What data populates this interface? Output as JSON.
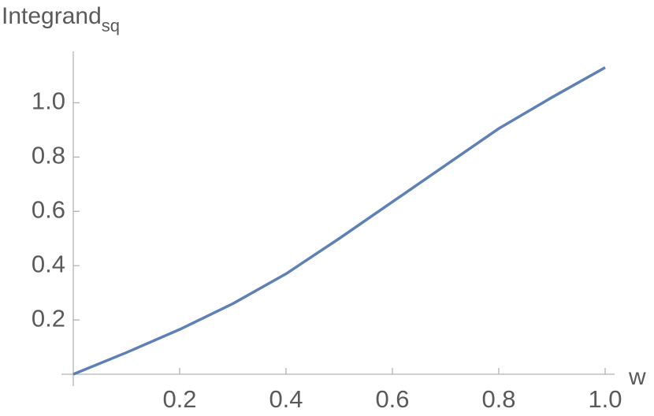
{
  "chart_data": {
    "type": "line",
    "x_label": "w",
    "y_label": "Integrand",
    "y_label_subscript": "sq",
    "x": [
      0,
      0.1,
      0.2,
      0.3,
      0.4,
      0.5,
      0.6,
      0.7,
      0.8,
      0.9,
      1.0
    ],
    "series": [
      {
        "color": "#5e81b5",
        "values": [
          0,
          0.08,
          0.165,
          0.26,
          0.37,
          0.5,
          0.635,
          0.77,
          0.905,
          1.02,
          1.13
        ]
      }
    ],
    "xlim": [
      0,
      1
    ],
    "ylim": [
      0,
      1.19
    ],
    "xticks": [
      0.2,
      0.4,
      0.6,
      0.8,
      {
        "value": 1,
        "label": "1.0"
      }
    ],
    "yticks": [
      0.2,
      0.4,
      0.6,
      0.8,
      {
        "value": 1,
        "label": "1.0"
      }
    ],
    "grid": false
  }
}
